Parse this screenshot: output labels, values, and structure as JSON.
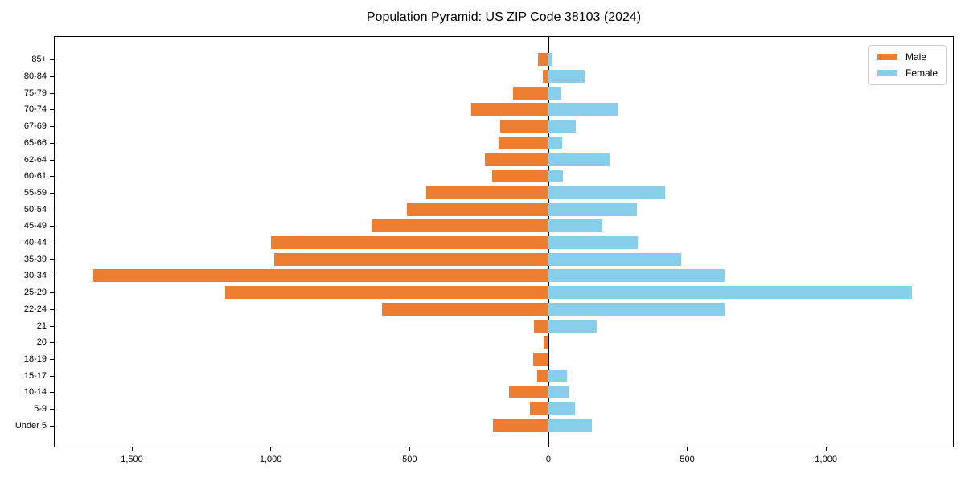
{
  "title": "Population Pyramid: US ZIP Code 38103 (2024)",
  "legend": {
    "male_label": "Male",
    "female_label": "Female"
  },
  "colors": {
    "male": "#ed7d31",
    "female": "#87ceeb",
    "axis": "#000000",
    "legend_border": "#cccccc"
  },
  "chart_data": {
    "type": "bar",
    "variant": "population-pyramid",
    "title": "Population Pyramid: US ZIP Code 38103 (2024)",
    "grid": false,
    "legend_position": "upper right",
    "categories_top_to_bottom": [
      "85+",
      "80-84",
      "75-79",
      "70-74",
      "67-69",
      "65-66",
      "62-64",
      "60-61",
      "55-59",
      "50-54",
      "45-49",
      "40-44",
      "35-39",
      "30-34",
      "25-29",
      "22-24",
      "21",
      "20",
      "18-19",
      "15-17",
      "10-14",
      "5-9",
      "Under 5"
    ],
    "series": [
      {
        "name": "Male",
        "side": "left",
        "color": "#ed7d31",
        "values": [
          37,
          20,
          128,
          279,
          175,
          180,
          228,
          202,
          440,
          509,
          637,
          1000,
          988,
          1643,
          1166,
          600,
          51,
          16,
          56,
          41,
          143,
          66,
          199
        ]
      },
      {
        "name": "Female",
        "side": "right",
        "color": "#87ceeb",
        "values": [
          15,
          131,
          48,
          251,
          99,
          50,
          220,
          54,
          420,
          320,
          195,
          324,
          478,
          636,
          1312,
          636,
          174,
          0,
          0,
          66,
          72,
          95,
          157
        ]
      }
    ],
    "x_ticks": [
      {
        "value": -1500,
        "label": "1,500"
      },
      {
        "value": -1000,
        "label": "1,000"
      },
      {
        "value": -500,
        "label": "500"
      },
      {
        "value": 0,
        "label": "0"
      },
      {
        "value": 500,
        "label": "500"
      },
      {
        "value": 1000,
        "label": "1,000"
      }
    ],
    "xlim": [
      -1781,
      1460
    ]
  }
}
